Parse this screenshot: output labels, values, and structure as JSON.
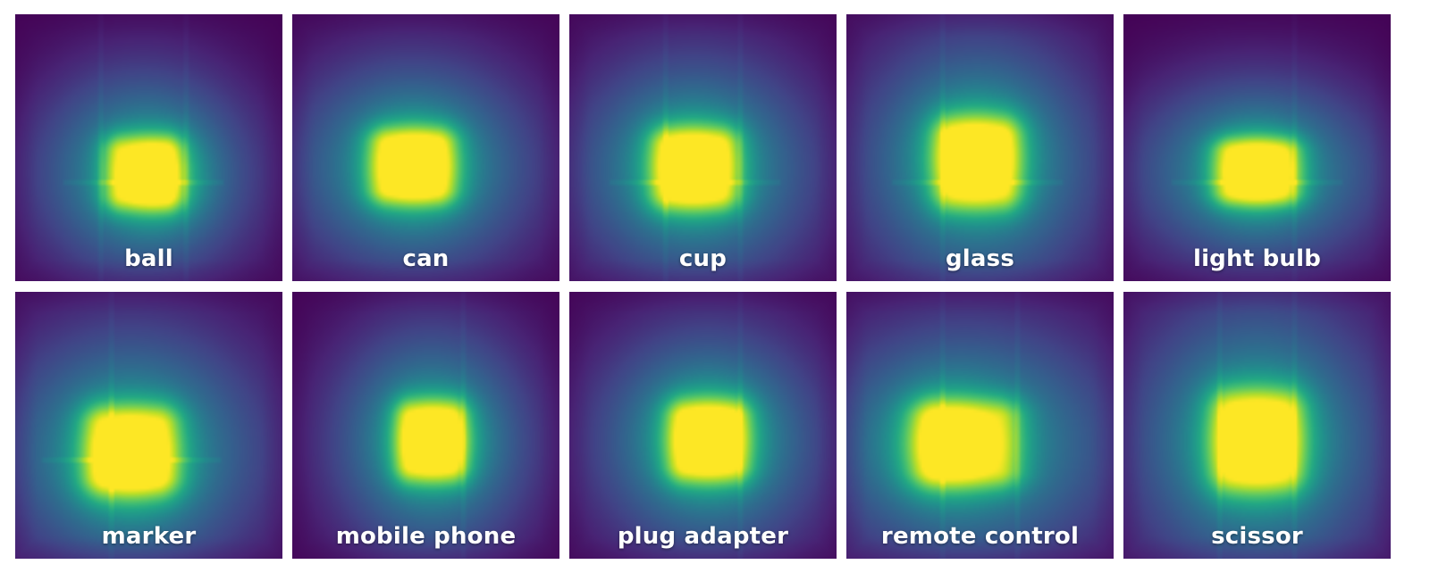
{
  "chart_data": {
    "type": "heatmap",
    "colormap": "viridis",
    "value_range": [
      0,
      1
    ],
    "layout": "2 rows x 5 columns",
    "panels": [
      {
        "label": "ball",
        "peak": {
          "x": 0.53,
          "y": 0.61
        },
        "hot_zone": {
          "x": [
            0.33,
            0.63
          ],
          "y": [
            0.45,
            0.74
          ]
        },
        "seams": {
          "vertical": [
            0.32,
            0.64
          ],
          "horizontal": [
            0.63
          ]
        }
      },
      {
        "label": "can",
        "peak": {
          "x": 0.46,
          "y": 0.57
        },
        "hot_zone": {
          "x": [
            0.28,
            0.62
          ],
          "y": [
            0.42,
            0.72
          ]
        },
        "seams": {
          "vertical": [],
          "horizontal": []
        }
      },
      {
        "label": "cup",
        "peak": {
          "x": 0.46,
          "y": 0.57
        },
        "hot_zone": {
          "x": [
            0.3,
            0.64
          ],
          "y": [
            0.42,
            0.74
          ]
        },
        "seams": {
          "vertical": [
            0.36,
            0.64
          ],
          "horizontal": [
            0.63
          ]
        }
      },
      {
        "label": "glass",
        "peak": {
          "x": 0.48,
          "y": 0.53
        },
        "hot_zone": {
          "x": [
            0.32,
            0.66
          ],
          "y": [
            0.38,
            0.74
          ]
        },
        "seams": {
          "vertical": [
            0.36
          ],
          "horizontal": [
            0.63
          ]
        }
      },
      {
        "label": "light bulb",
        "peak": {
          "x": 0.5,
          "y": 0.59
        },
        "hot_zone": {
          "x": [
            0.33,
            0.67
          ],
          "y": [
            0.46,
            0.72
          ]
        },
        "seams": {
          "vertical": [
            0.64
          ],
          "horizontal": [
            0.63
          ]
        }
      },
      {
        "label": "marker",
        "peak": {
          "x": 0.43,
          "y": 0.63
        },
        "hot_zone": {
          "x": [
            0.25,
            0.62
          ],
          "y": [
            0.42,
            0.77
          ]
        },
        "seams": {
          "vertical": [
            0.36
          ],
          "horizontal": [
            0.63
          ]
        }
      },
      {
        "label": "mobile phone",
        "peak": {
          "x": 0.53,
          "y": 0.56
        },
        "hot_zone": {
          "x": [
            0.38,
            0.66
          ],
          "y": [
            0.4,
            0.72
          ]
        },
        "seams": {
          "vertical": [
            0.64
          ],
          "horizontal": []
        }
      },
      {
        "label": "plug adapter",
        "peak": {
          "x": 0.52,
          "y": 0.55
        },
        "hot_zone": {
          "x": [
            0.36,
            0.68
          ],
          "y": [
            0.4,
            0.72
          ]
        },
        "seams": {
          "vertical": [
            0.64
          ],
          "horizontal": []
        }
      },
      {
        "label": "remote control",
        "peak": {
          "x": 0.37,
          "y": 0.57
        },
        "hot_zone": {
          "x": [
            0.24,
            0.66
          ],
          "y": [
            0.4,
            0.74
          ]
        },
        "seams": {
          "vertical": [
            0.36,
            0.64
          ],
          "horizontal": []
        }
      },
      {
        "label": "scissor",
        "peak": {
          "x": 0.5,
          "y": 0.56
        },
        "hot_zone": {
          "x": [
            0.32,
            0.68
          ],
          "y": [
            0.36,
            0.76
          ]
        },
        "seams": {
          "vertical": [
            0.36,
            0.64
          ],
          "horizontal": []
        }
      }
    ]
  }
}
